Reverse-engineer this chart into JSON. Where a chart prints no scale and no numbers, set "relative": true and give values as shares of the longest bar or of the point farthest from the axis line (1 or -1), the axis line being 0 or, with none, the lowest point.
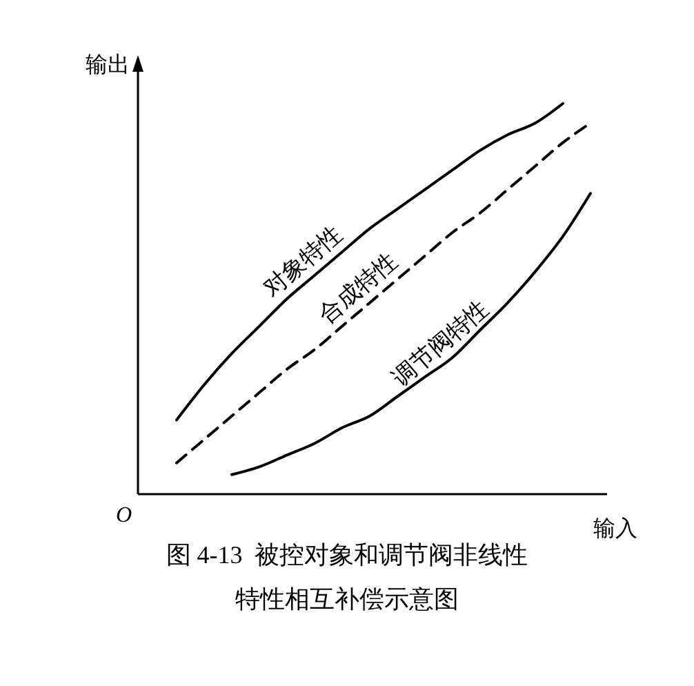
{
  "chart_data": {
    "type": "line",
    "relative": true,
    "title": "图 4-13  被控对象和调节阀非线性特性相互补偿示意图",
    "xlabel": "输入",
    "ylabel": "输出",
    "annotations": [
      "O"
    ],
    "categories": [
      null,
      null,
      null,
      null,
      null,
      null,
      null,
      null,
      null,
      null,
      null,
      null,
      null,
      null,
      null,
      null
    ],
    "series": [
      {
        "name": "对象特性",
        "color": "#000000",
        "line_style": "solid",
        "values": [
          0.19,
          0.28,
          0.36,
          0.43,
          0.5,
          0.56,
          0.62,
          0.68,
          0.73,
          0.78,
          0.83,
          0.88,
          0.92,
          0.95,
          1.0,
          null
        ]
      },
      {
        "name": "合成特性",
        "color": "#000000",
        "line_style": "dashed",
        "values": [
          0.08,
          0.14,
          0.2,
          0.26,
          0.32,
          0.37,
          0.43,
          0.49,
          0.55,
          0.61,
          0.67,
          0.72,
          0.78,
          0.84,
          0.9,
          0.95
        ]
      },
      {
        "name": "调节阀特性",
        "color": "#000000",
        "line_style": "solid",
        "values": [
          null,
          null,
          0.05,
          0.07,
          0.1,
          0.13,
          0.17,
          0.2,
          0.25,
          0.3,
          0.35,
          0.42,
          0.49,
          0.57,
          0.66,
          0.77
        ]
      }
    ]
  }
}
